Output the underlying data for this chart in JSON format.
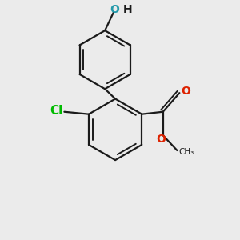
{
  "background_color": "#ebebeb",
  "bond_color": "#1a1a1a",
  "cl_color": "#00bb00",
  "o_color": "#dd2200",
  "oh_o_color": "#2299aa",
  "oh_h_color": "#1a1a1a",
  "line_width": 1.6,
  "inner_lw": 1.4,
  "figsize": [
    3.0,
    3.0
  ],
  "dpi": 100,
  "xlim": [
    -1.8,
    2.2
  ],
  "ylim": [
    -2.8,
    2.2
  ]
}
